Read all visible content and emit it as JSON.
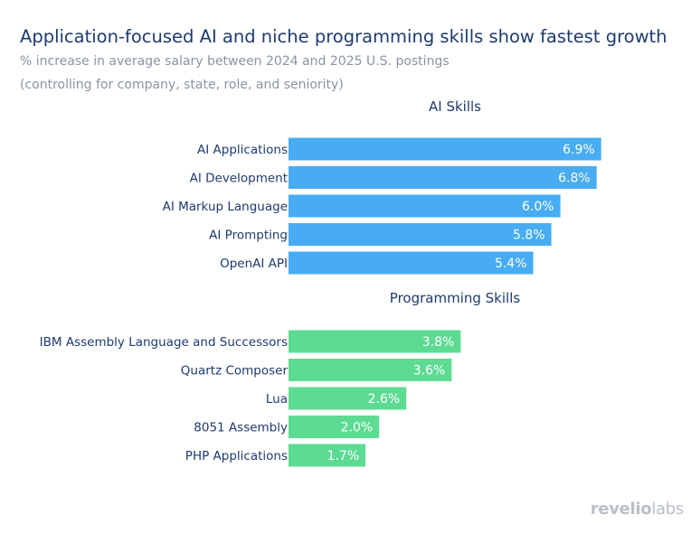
{
  "title": "Application-focused AI and niche programming skills show fastest growth",
  "subtitle_line1": "% increase in average salary between 2024 and 2025 U.S. postings",
  "subtitle_line2": "(controlling for company, state, role, and seniority)",
  "logo": {
    "bold": "revelio",
    "light": "labs"
  },
  "colors": {
    "ai": "#47acf1",
    "programming": "#5ddb93",
    "text": "#1e3a6e"
  },
  "chart_data": [
    {
      "type": "bar",
      "orientation": "horizontal",
      "title": "AI Skills",
      "categories": [
        "AI Applications",
        "AI Development",
        "AI Markup Language",
        "AI Prompting",
        "OpenAI API"
      ],
      "values": [
        6.9,
        6.8,
        6.0,
        5.8,
        5.4
      ],
      "labels": [
        "6.9%",
        "6.8%",
        "6.0%",
        "5.8%",
        "5.4%"
      ]
    },
    {
      "type": "bar",
      "orientation": "horizontal",
      "title": "Programming Skills",
      "categories": [
        "IBM Assembly Language and Successors",
        "Quartz Composer",
        "Lua",
        "8051 Assembly",
        "PHP Applications"
      ],
      "values": [
        3.8,
        3.6,
        2.6,
        2.0,
        1.7
      ],
      "labels": [
        "3.8%",
        "3.6%",
        "2.6%",
        "2.0%",
        "1.7%"
      ]
    }
  ]
}
